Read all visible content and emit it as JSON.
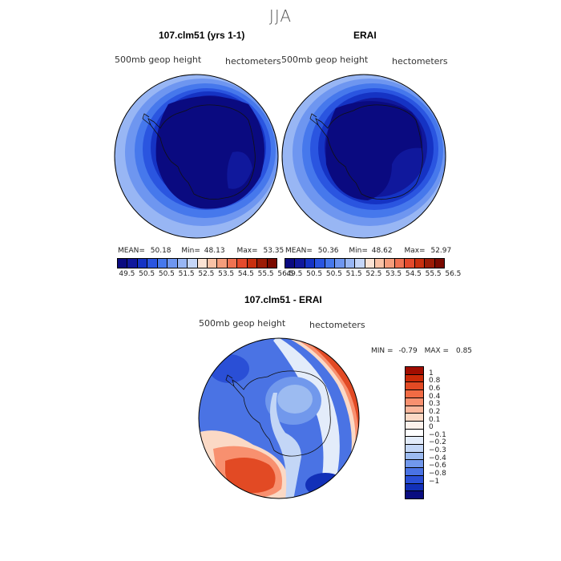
{
  "season": "JJA",
  "panels": [
    {
      "title": "107.clm51 (yrs 1-1)",
      "variable": "500mb geop height",
      "units": "hectometers",
      "stats": {
        "mean_label": "MEAN=",
        "mean": "50.18",
        "min_label": "Min=",
        "min": "48.13",
        "max_label": "Max=",
        "max": "53.35"
      }
    },
    {
      "title": "ERAI",
      "variable": "500mb geop height",
      "units": "hectometers",
      "stats": {
        "mean_label": "MEAN=",
        "mean": "50.36",
        "min_label": "Min=",
        "min": "48.62",
        "max_label": "Max=",
        "max": "52.97"
      }
    }
  ],
  "colorbar": {
    "colors": [
      "#0a0a80",
      "#10189c",
      "#1533c4",
      "#2a55e0",
      "#4678ec",
      "#6e96f0",
      "#98b6f4",
      "#c5d6f8",
      "#fbe3d4",
      "#f9c2a6",
      "#f59d7c",
      "#ef7252",
      "#e44a2c",
      "#c9300f",
      "#9c1c06",
      "#7a0a00"
    ],
    "tick_labels": [
      "49.5",
      "50.5",
      "50.5",
      "51.5",
      "52.5",
      "53.5",
      "54.5",
      "55.5",
      "56.5"
    ]
  },
  "diff": {
    "title": "107.clm51 - ERAI",
    "variable": "500mb geop height",
    "units": "hectometers",
    "minmax": {
      "min_label": "MIN =",
      "min": "-0.79",
      "max_label": "MAX =",
      "max": "0.85"
    },
    "colorbar": {
      "colors": [
        "#a10d00",
        "#cb2a08",
        "#e24a24",
        "#f16b44",
        "#f8906f",
        "#fbb79c",
        "#fbd9c5",
        "#fdf2ec",
        "#ffffff",
        "#e3ecfa",
        "#c3d6f6",
        "#9cbbf1",
        "#7198ec",
        "#4a73e4",
        "#2a4fd6",
        "#1230b8",
        "#0a0d80"
      ],
      "labels": [
        "1",
        "0.8",
        "0.6",
        "0.4",
        "0.3",
        "0.2",
        "0.1",
        "0",
        "−0.1",
        "−0.2",
        "−0.3",
        "−0.4",
        "−0.6",
        "−0.8",
        "−1"
      ]
    }
  }
}
